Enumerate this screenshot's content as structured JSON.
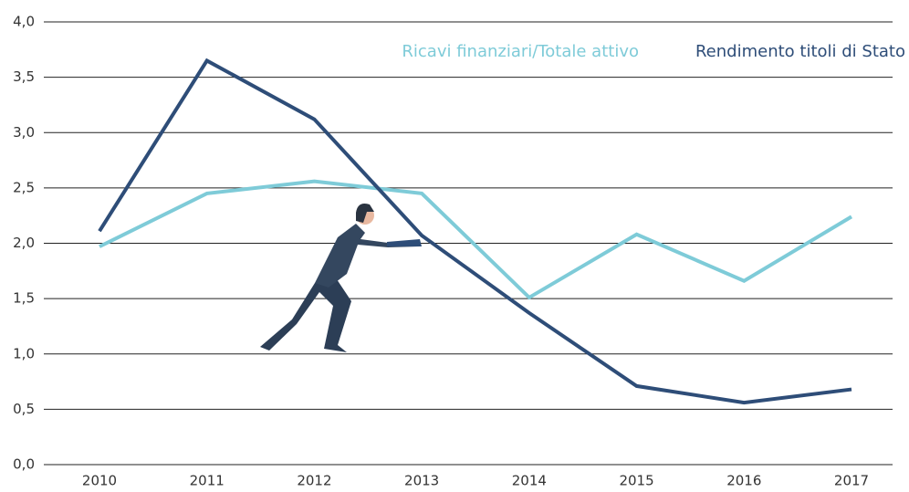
{
  "chart_data": {
    "type": "line",
    "categories": [
      "2010",
      "2011",
      "2012",
      "2013",
      "2014",
      "2015",
      "2016",
      "2017"
    ],
    "series": [
      {
        "name": "Ricavi finanziari/Totale attivo",
        "color": "#7ecbd8",
        "values": [
          1.97,
          2.45,
          2.56,
          2.45,
          1.51,
          2.08,
          1.66,
          2.24
        ]
      },
      {
        "name": "Rendimento titoli di Stato",
        "color": "#2e4d78",
        "values": [
          2.11,
          3.65,
          3.12,
          2.07,
          1.37,
          0.71,
          0.56,
          0.68
        ]
      }
    ],
    "ylim": [
      0,
      4
    ],
    "yticks": [
      {
        "value": 0,
        "label": "0,0"
      },
      {
        "value": 0.5,
        "label": "0,5"
      },
      {
        "value": 1,
        "label": "1,0"
      },
      {
        "value": 1.5,
        "label": "1,5"
      },
      {
        "value": 2,
        "label": "2,0"
      },
      {
        "value": 2.5,
        "label": "2,5"
      },
      {
        "value": 3,
        "label": "3,0"
      },
      {
        "value": 3.5,
        "label": "3,5"
      },
      {
        "value": 4,
        "label": "4,0"
      }
    ],
    "grid": true
  }
}
